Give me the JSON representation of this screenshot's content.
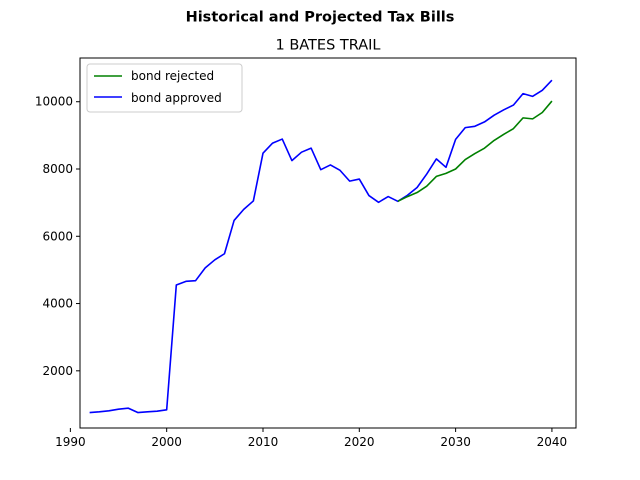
{
  "chart_data": {
    "type": "line",
    "title": "Historical and Projected Tax Bills",
    "subtitle": "1 BATES TRAIL",
    "xlim": [
      1991,
      2042.5
    ],
    "ylim": [
      300,
      11300
    ],
    "x_ticks": [
      1990,
      2000,
      2010,
      2020,
      2030,
      2040
    ],
    "y_ticks": [
      2000,
      4000,
      6000,
      8000,
      10000
    ],
    "grid": false,
    "legend_position": "top-left",
    "series": [
      {
        "name": "bond approved",
        "color": "#0000ff",
        "points": [
          [
            1992,
            760
          ],
          [
            1993,
            780
          ],
          [
            1994,
            810
          ],
          [
            1995,
            860
          ],
          [
            1996,
            890
          ],
          [
            1997,
            760
          ],
          [
            1998,
            780
          ],
          [
            1999,
            800
          ],
          [
            2000,
            840
          ],
          [
            2001,
            4550
          ],
          [
            2002,
            4660
          ],
          [
            2003,
            4680
          ],
          [
            2004,
            5060
          ],
          [
            2005,
            5300
          ],
          [
            2006,
            5480
          ],
          [
            2007,
            6470
          ],
          [
            2008,
            6800
          ],
          [
            2009,
            7050
          ],
          [
            2010,
            8470
          ],
          [
            2011,
            8770
          ],
          [
            2012,
            8890
          ],
          [
            2013,
            8250
          ],
          [
            2014,
            8500
          ],
          [
            2015,
            8620
          ],
          [
            2016,
            7980
          ],
          [
            2017,
            8120
          ],
          [
            2018,
            7960
          ],
          [
            2019,
            7640
          ],
          [
            2020,
            7700
          ],
          [
            2021,
            7210
          ],
          [
            2022,
            7010
          ],
          [
            2023,
            7180
          ],
          [
            2024,
            7040
          ],
          [
            2025,
            7220
          ],
          [
            2026,
            7450
          ],
          [
            2027,
            7850
          ],
          [
            2028,
            8300
          ],
          [
            2029,
            8050
          ],
          [
            2030,
            8880
          ],
          [
            2031,
            9230
          ],
          [
            2032,
            9270
          ],
          [
            2033,
            9400
          ],
          [
            2034,
            9600
          ],
          [
            2035,
            9760
          ],
          [
            2036,
            9900
          ],
          [
            2037,
            10240
          ],
          [
            2038,
            10160
          ],
          [
            2039,
            10340
          ],
          [
            2040,
            10640
          ]
        ]
      },
      {
        "name": "bond rejected",
        "color": "#008000",
        "points": [
          [
            2024,
            7040
          ],
          [
            2025,
            7180
          ],
          [
            2026,
            7300
          ],
          [
            2027,
            7490
          ],
          [
            2028,
            7780
          ],
          [
            2029,
            7870
          ],
          [
            2030,
            8000
          ],
          [
            2031,
            8280
          ],
          [
            2032,
            8460
          ],
          [
            2033,
            8620
          ],
          [
            2034,
            8850
          ],
          [
            2035,
            9030
          ],
          [
            2036,
            9200
          ],
          [
            2037,
            9520
          ],
          [
            2038,
            9490
          ],
          [
            2039,
            9680
          ],
          [
            2040,
            10020
          ]
        ]
      }
    ],
    "legend": [
      {
        "label": "bond rejected",
        "color": "#008000"
      },
      {
        "label": "bond approved",
        "color": "#0000ff"
      }
    ]
  }
}
